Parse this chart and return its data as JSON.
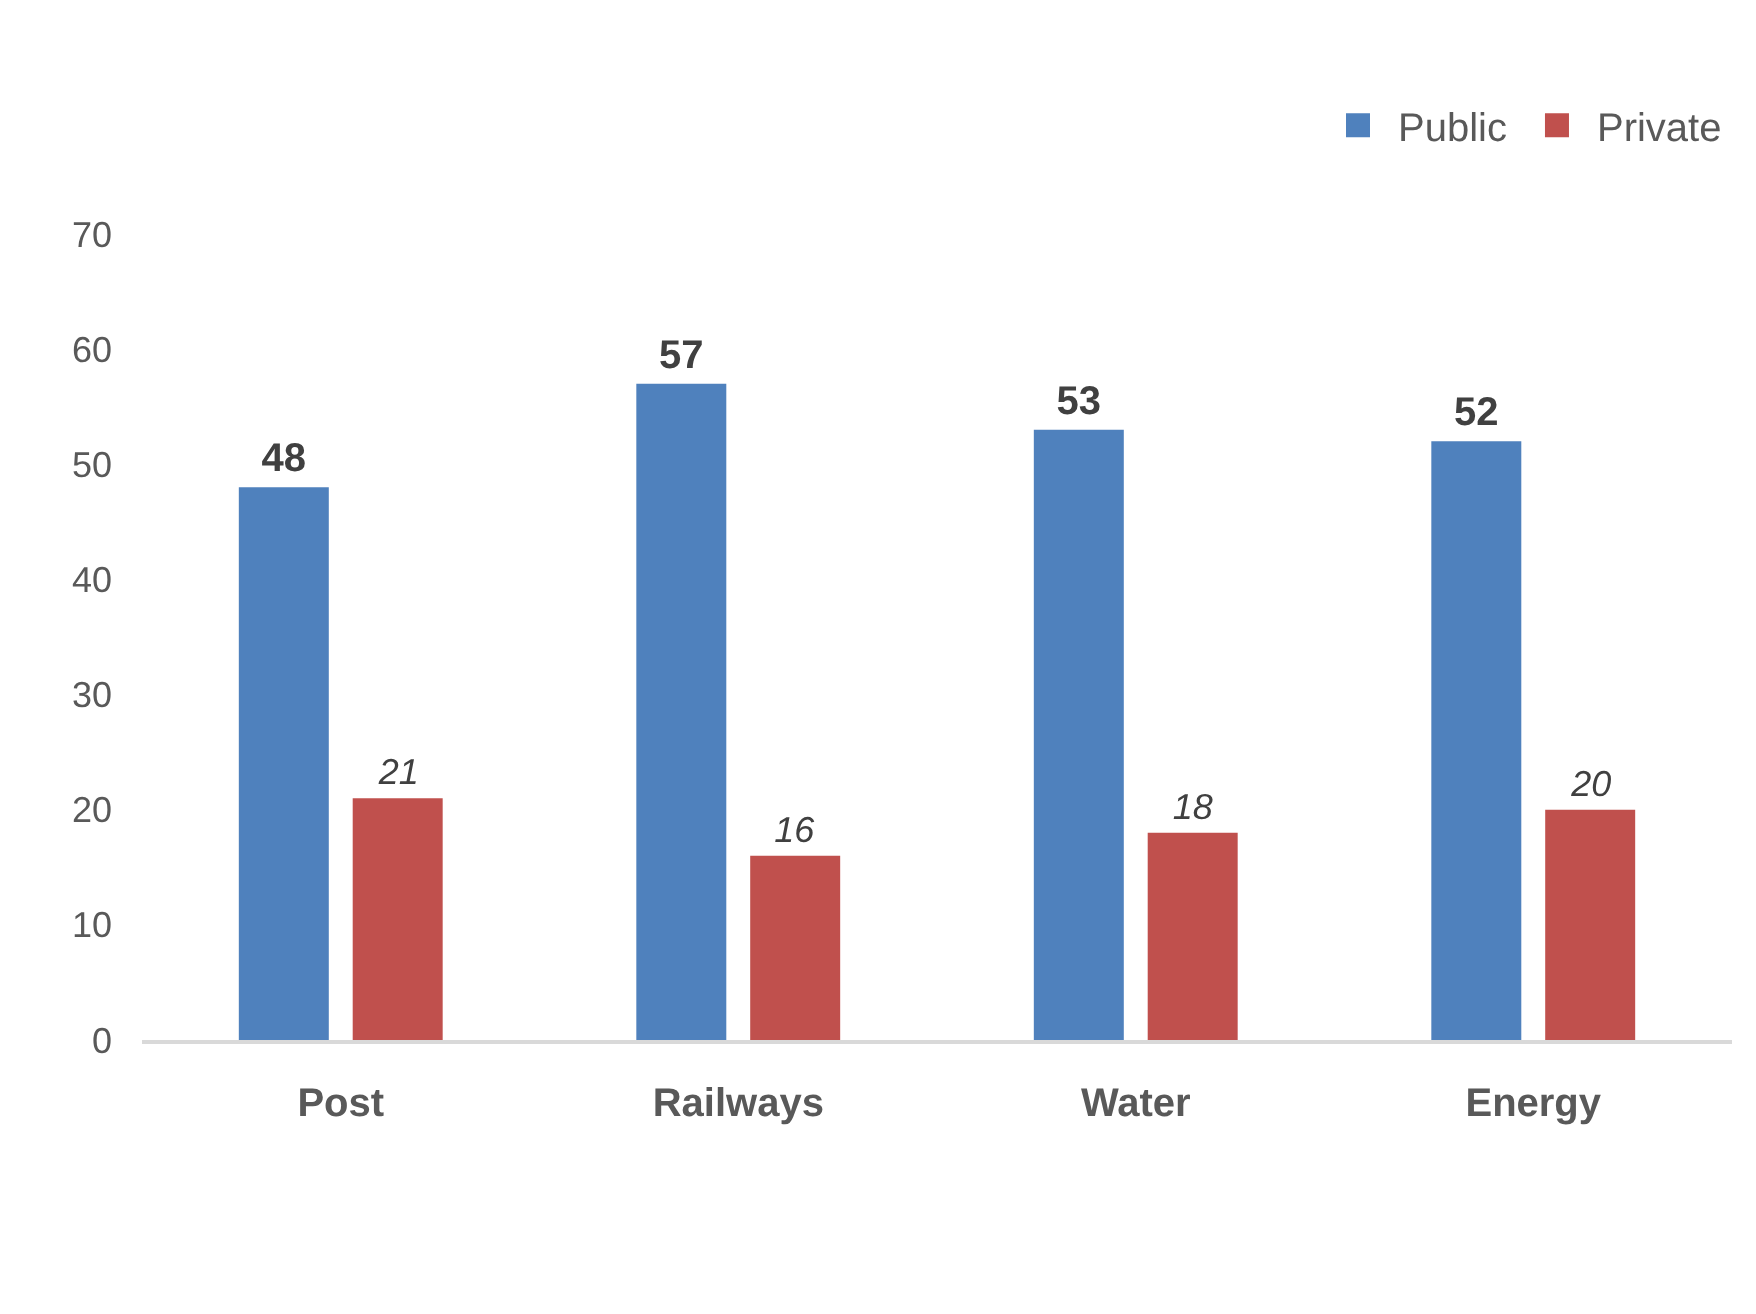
{
  "chart_data": {
    "type": "bar",
    "categories": [
      "Post",
      "Railways",
      "Water",
      "Energy"
    ],
    "series": [
      {
        "name": "Public",
        "color": "#4f81bd",
        "values": [
          48,
          57,
          53,
          52
        ]
      },
      {
        "name": "Private",
        "color": "#c0504d",
        "values": [
          21,
          16,
          18,
          20
        ]
      }
    ],
    "ylim": [
      0,
      70
    ],
    "yticks": [
      0,
      10,
      20,
      30,
      40,
      50,
      60,
      70
    ],
    "grid": false,
    "legend": "top right",
    "data_labels": true
  }
}
